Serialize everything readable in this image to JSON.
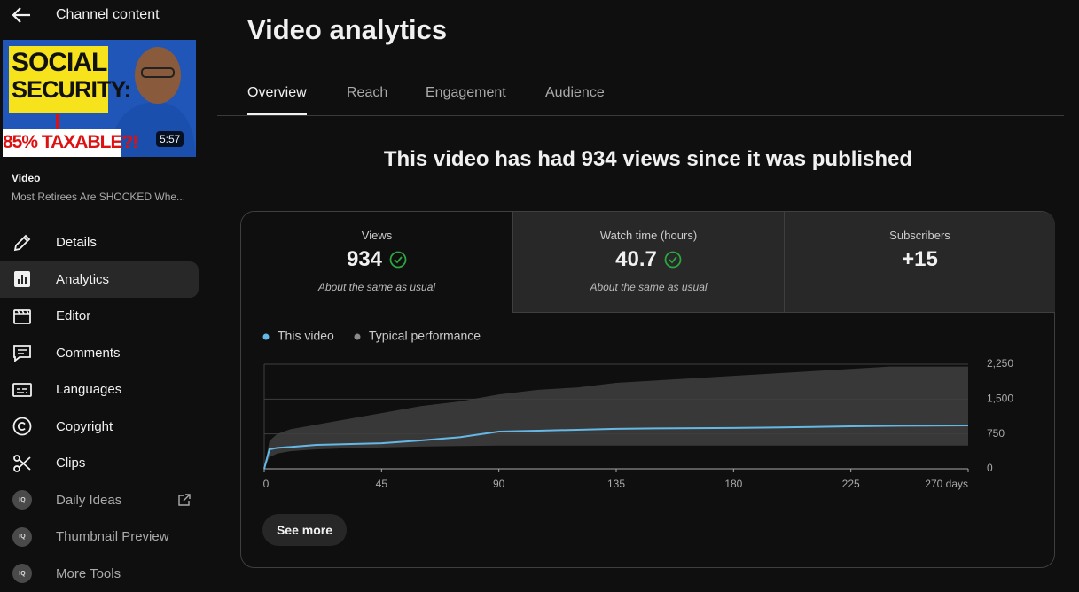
{
  "sidebar": {
    "back_label": "Channel content",
    "thumbnail": {
      "headline": [
        "SOCIAL",
        "SECURITY:"
      ],
      "banner": "85% TAXABLE?!",
      "duration": "5:57"
    },
    "video_label": "Video",
    "video_title": "Most Retirees Are SHOCKED Whe...",
    "nav": [
      {
        "label": "Details"
      },
      {
        "label": "Analytics",
        "active": true
      },
      {
        "label": "Editor"
      },
      {
        "label": "Comments"
      },
      {
        "label": "Languages"
      },
      {
        "label": "Copyright"
      },
      {
        "label": "Clips"
      },
      {
        "label": "Daily Ideas",
        "badge": "IQ",
        "external": true
      },
      {
        "label": "Thumbnail Preview",
        "badge": "IQ"
      },
      {
        "label": "More Tools",
        "badge": "IQ"
      }
    ]
  },
  "main": {
    "title": "Video analytics",
    "tabs": [
      {
        "label": "Overview",
        "active": true
      },
      {
        "label": "Reach"
      },
      {
        "label": "Engagement"
      },
      {
        "label": "Audience"
      }
    ],
    "headline": "This video has had 934 views since it was published",
    "metrics": [
      {
        "label": "Views",
        "value": "934",
        "ok": true,
        "note": "About the same as usual",
        "selected": true
      },
      {
        "label": "Watch time (hours)",
        "value": "40.7",
        "ok": true,
        "note": "About the same as usual"
      },
      {
        "label": "Subscribers",
        "value": "+15"
      }
    ],
    "button": "See more"
  },
  "chart_data": {
    "type": "line",
    "x": [
      0,
      2,
      5,
      10,
      20,
      30,
      45,
      60,
      75,
      90,
      105,
      120,
      135,
      150,
      165,
      180,
      195,
      210,
      225,
      240,
      255,
      270
    ],
    "series": [
      {
        "name": "This video",
        "color": "#65b8e6",
        "values": [
          0,
          420,
          450,
          470,
          515,
          530,
          550,
          610,
          680,
          800,
          820,
          840,
          860,
          870,
          875,
          880,
          890,
          900,
          915,
          925,
          930,
          934
        ]
      }
    ],
    "band": {
      "name": "Typical performance",
      "color": "#383838",
      "upper": [
        0,
        600,
        750,
        850,
        950,
        1050,
        1200,
        1350,
        1450,
        1600,
        1700,
        1750,
        1850,
        1900,
        1950,
        2000,
        2050,
        2100,
        2150,
        2200,
        2200,
        2200
      ],
      "lower": [
        0,
        250,
        330,
        380,
        420,
        440,
        460,
        480,
        490,
        500,
        500,
        500,
        500,
        500,
        500,
        500,
        500,
        500,
        500,
        500,
        500,
        500
      ]
    },
    "xlim": [
      0,
      270
    ],
    "xticks": [
      0,
      45,
      90,
      135,
      180,
      225,
      {
        "value": 270,
        "label": "270 days"
      }
    ],
    "ylim": [
      0,
      2250
    ],
    "yticks": [
      0,
      750,
      {
        "value": 1500,
        "label": "1,500"
      },
      {
        "value": 2250,
        "label": "2,250"
      }
    ],
    "grid": true,
    "legend": "top-left"
  }
}
